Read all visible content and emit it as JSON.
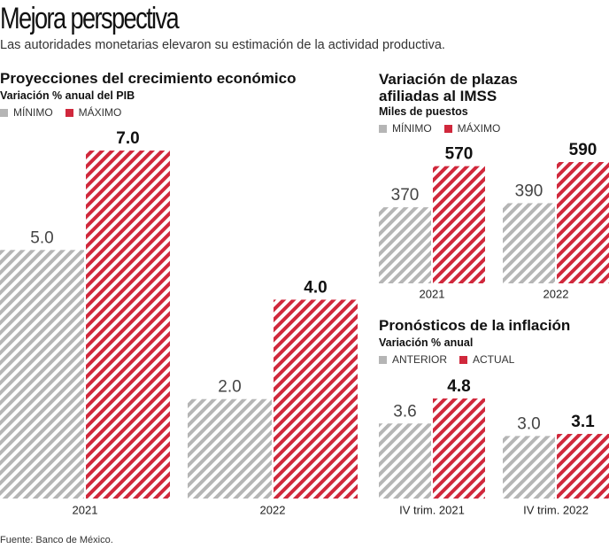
{
  "title": "Mejora perspectiva",
  "subtitle": "Las autoridades monetarias elevaron su estimación de la actividad productiva.",
  "source": "Fuente: Banco de México.",
  "chart_data": [
    {
      "type": "bar",
      "title": "Proyecciones del crecimiento económico",
      "subtitle": "Variación % anual del PIB",
      "categories": [
        "2021",
        "2022"
      ],
      "ylim": [
        0,
        7
      ],
      "series": [
        {
          "name": "MÍNIMO",
          "color": "#b5b5b5",
          "values": [
            5,
            2
          ],
          "value_labels": [
            "5.0",
            "2.0"
          ]
        },
        {
          "name": "MÁXIMO",
          "color": "#d0283c",
          "values": [
            7,
            4
          ],
          "value_labels": [
            "7.0",
            "4.0"
          ]
        }
      ]
    },
    {
      "type": "bar",
      "title": "Variación de plazas afiliadas al IMSS",
      "subtitle": "Miles de puestos",
      "categories": [
        "2021",
        "2022"
      ],
      "ylim": [
        0,
        590
      ],
      "series": [
        {
          "name": "MÍNIMO",
          "color": "#b5b5b5",
          "values": [
            370,
            390
          ]
        },
        {
          "name": "MÁXIMO",
          "color": "#d0283c",
          "values": [
            570,
            590
          ]
        }
      ]
    },
    {
      "type": "bar",
      "title": "Pronósticos de la inflación",
      "subtitle": "Variación % anual",
      "categories": [
        "IV trim. 2021",
        "IV trim. 2022"
      ],
      "ylim": [
        0,
        4.8
      ],
      "series": [
        {
          "name": "ANTERIOR",
          "color": "#b5b5b5",
          "values": [
            3.6,
            3.0
          ],
          "value_labels": [
            "3.6",
            "3.0"
          ]
        },
        {
          "name": "ACTUAL",
          "color": "#d0283c",
          "values": [
            4.8,
            3.1
          ]
        }
      ]
    }
  ]
}
